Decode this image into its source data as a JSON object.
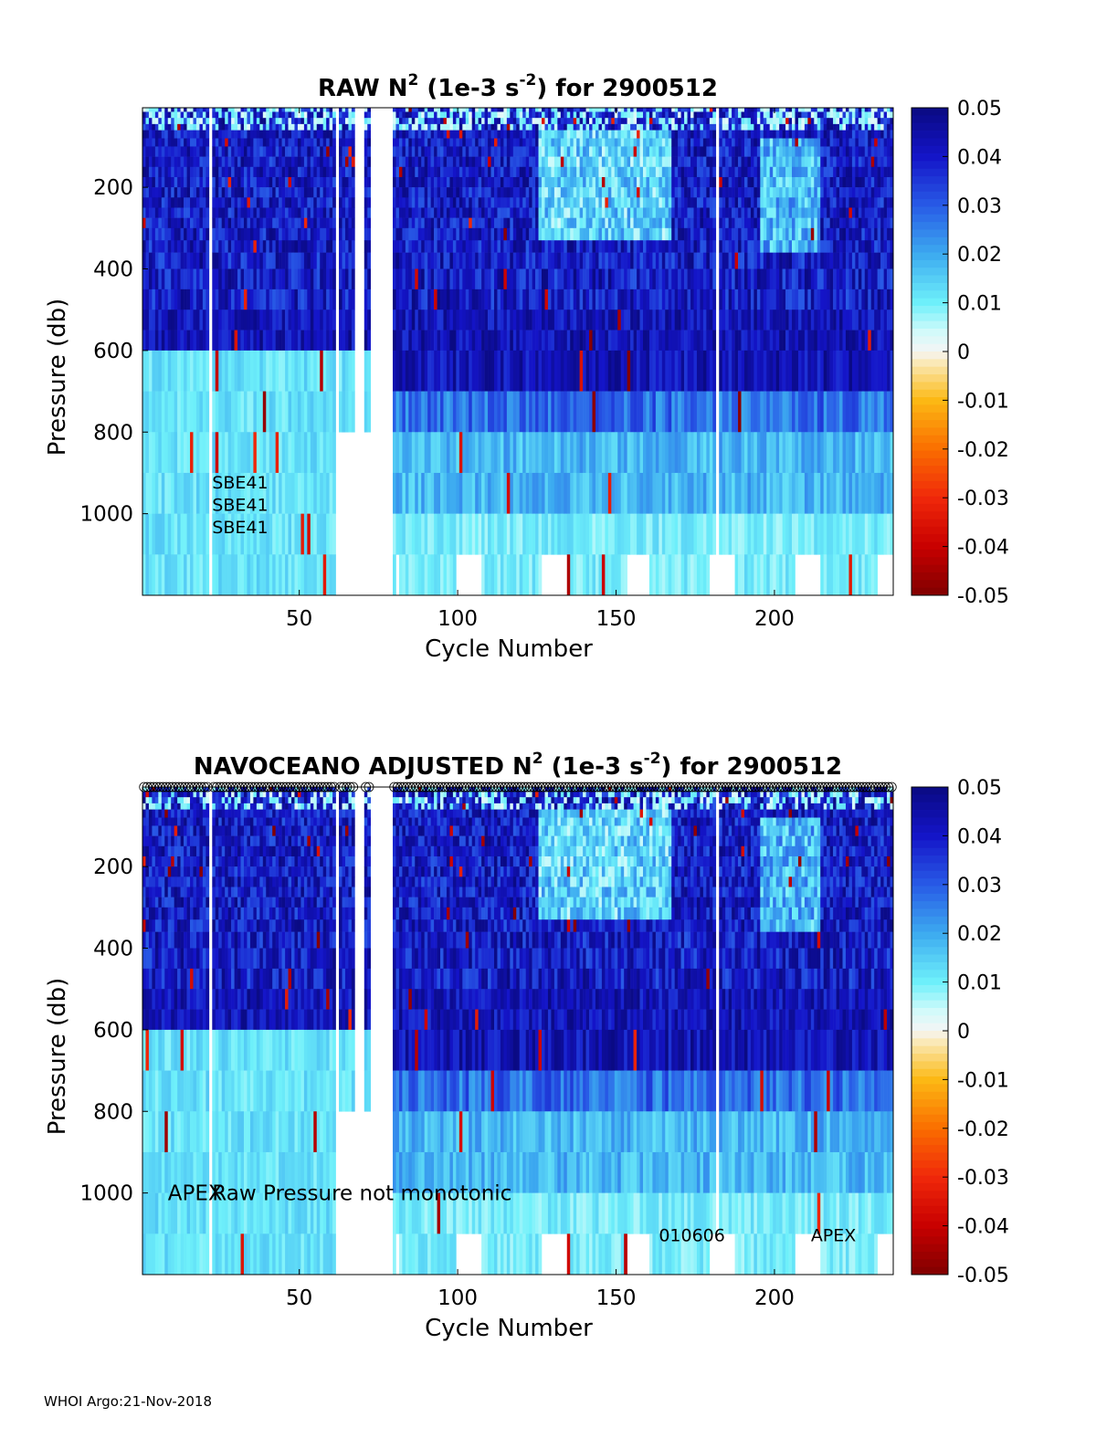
{
  "chart_data": [
    {
      "type": "heatmap",
      "title_parts": {
        "prefix": "RAW N",
        "sup1": "2",
        "mid": " (1e-3 s",
        "sup2": "-2",
        "suffix": ") for 2900512"
      },
      "xlabel": "Cycle Number",
      "ylabel": "Pressure (db)",
      "xlim": [
        1,
        237
      ],
      "ylim": [
        1200,
        5
      ],
      "xticks": [
        50,
        100,
        150,
        200
      ],
      "yticks": [
        200,
        400,
        600,
        800,
        1000
      ],
      "colorbar": {
        "range": [
          -0.05,
          0.05
        ],
        "ticks": [
          "0.05",
          "0.04",
          "0.03",
          "0.02",
          "0.01",
          "0",
          "-0.01",
          "-0.02",
          "-0.03",
          "-0.04",
          "-0.05"
        ]
      },
      "gap_columns": [
        22,
        62,
        68,
        69,
        70,
        73,
        74,
        75,
        76,
        77,
        78,
        79,
        182
      ],
      "text_annotations": [
        {
          "text": "SBE41",
          "x": 23,
          "y": 920
        },
        {
          "text": "SBE41",
          "x": 23,
          "y": 975
        },
        {
          "text": "SBE41",
          "x": 23,
          "y": 1030
        }
      ]
    },
    {
      "type": "heatmap",
      "title_parts": {
        "prefix": "NAVOCEANO  ADJUSTED N",
        "sup1": "2",
        "mid": " (1e-3 s",
        "sup2": "-2",
        "suffix": ") for 2900512"
      },
      "xlabel": "Cycle Number",
      "ylabel": "Pressure (db)",
      "xlim": [
        1,
        237
      ],
      "ylim": [
        1200,
        5
      ],
      "xticks": [
        50,
        100,
        150,
        200
      ],
      "yticks": [
        200,
        400,
        600,
        800,
        1000
      ],
      "colorbar": {
        "range": [
          -0.05,
          0.05
        ],
        "ticks": [
          "0.05",
          "0.04",
          "0.03",
          "0.02",
          "0.01",
          "0",
          "-0.01",
          "-0.02",
          "-0.03",
          "-0.04",
          "-0.05"
        ]
      },
      "gap_columns": [
        22,
        62,
        68,
        69,
        70,
        73,
        74,
        75,
        76,
        77,
        78,
        79,
        182
      ],
      "top_markers": "o",
      "text_annotations": [
        {
          "text": "APEX",
          "x": 9,
          "y": 1000,
          "size": "large"
        },
        {
          "text": "Raw Pressure not monotonic",
          "x": 23,
          "y": 1000,
          "size": "large"
        },
        {
          "text": "010606",
          "x": 164,
          "y": 1100,
          "size": "small"
        },
        {
          "text": "APEX",
          "x": 212,
          "y": 1100,
          "size": "small"
        }
      ]
    }
  ],
  "footer": "WHOI Argo:21-Nov-2018"
}
